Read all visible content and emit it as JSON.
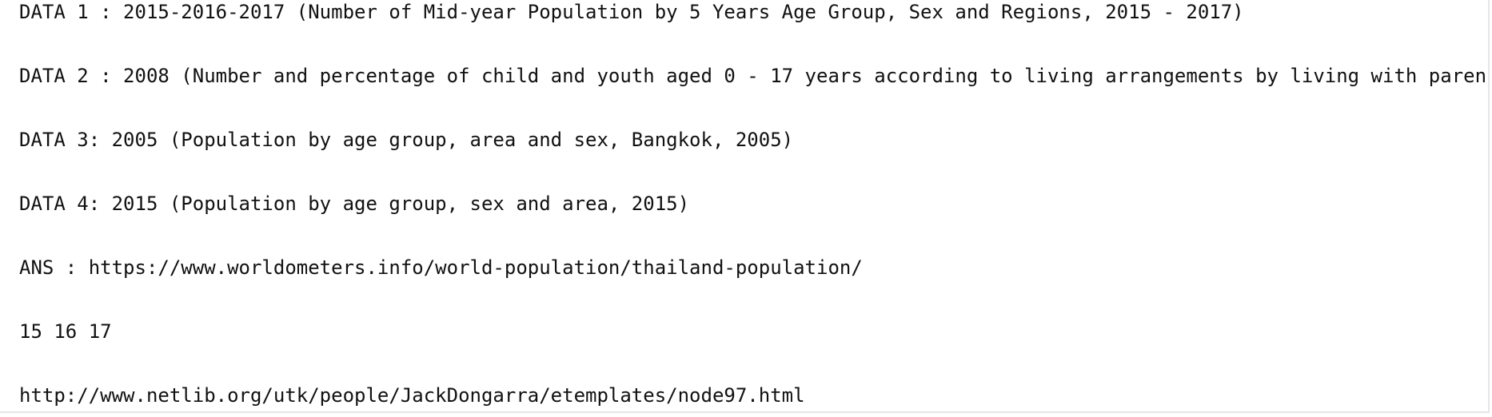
{
  "document": {
    "lines": [
      "DATA 1 : 2015-2016-2017 (Number of Mid-year Population by 5 Years Age Group, Sex and Regions, 2015 - 2017)",
      "DATA 2 : 2008 (Number and percentage of child and youth aged 0 - 17 years according to living arrangements by living with paren",
      "DATA 3: 2005 (Population by age group, area and sex, Bangkok, 2005)",
      "DATA 4: 2015 (Population by age group, sex and area, 2015)",
      "ANS : https://www.worldometers.info/world-population/thailand-population/",
      "15 16 17",
      "http://www.netlib.org/utk/people/JackDongarra/etemplates/node97.html"
    ]
  }
}
